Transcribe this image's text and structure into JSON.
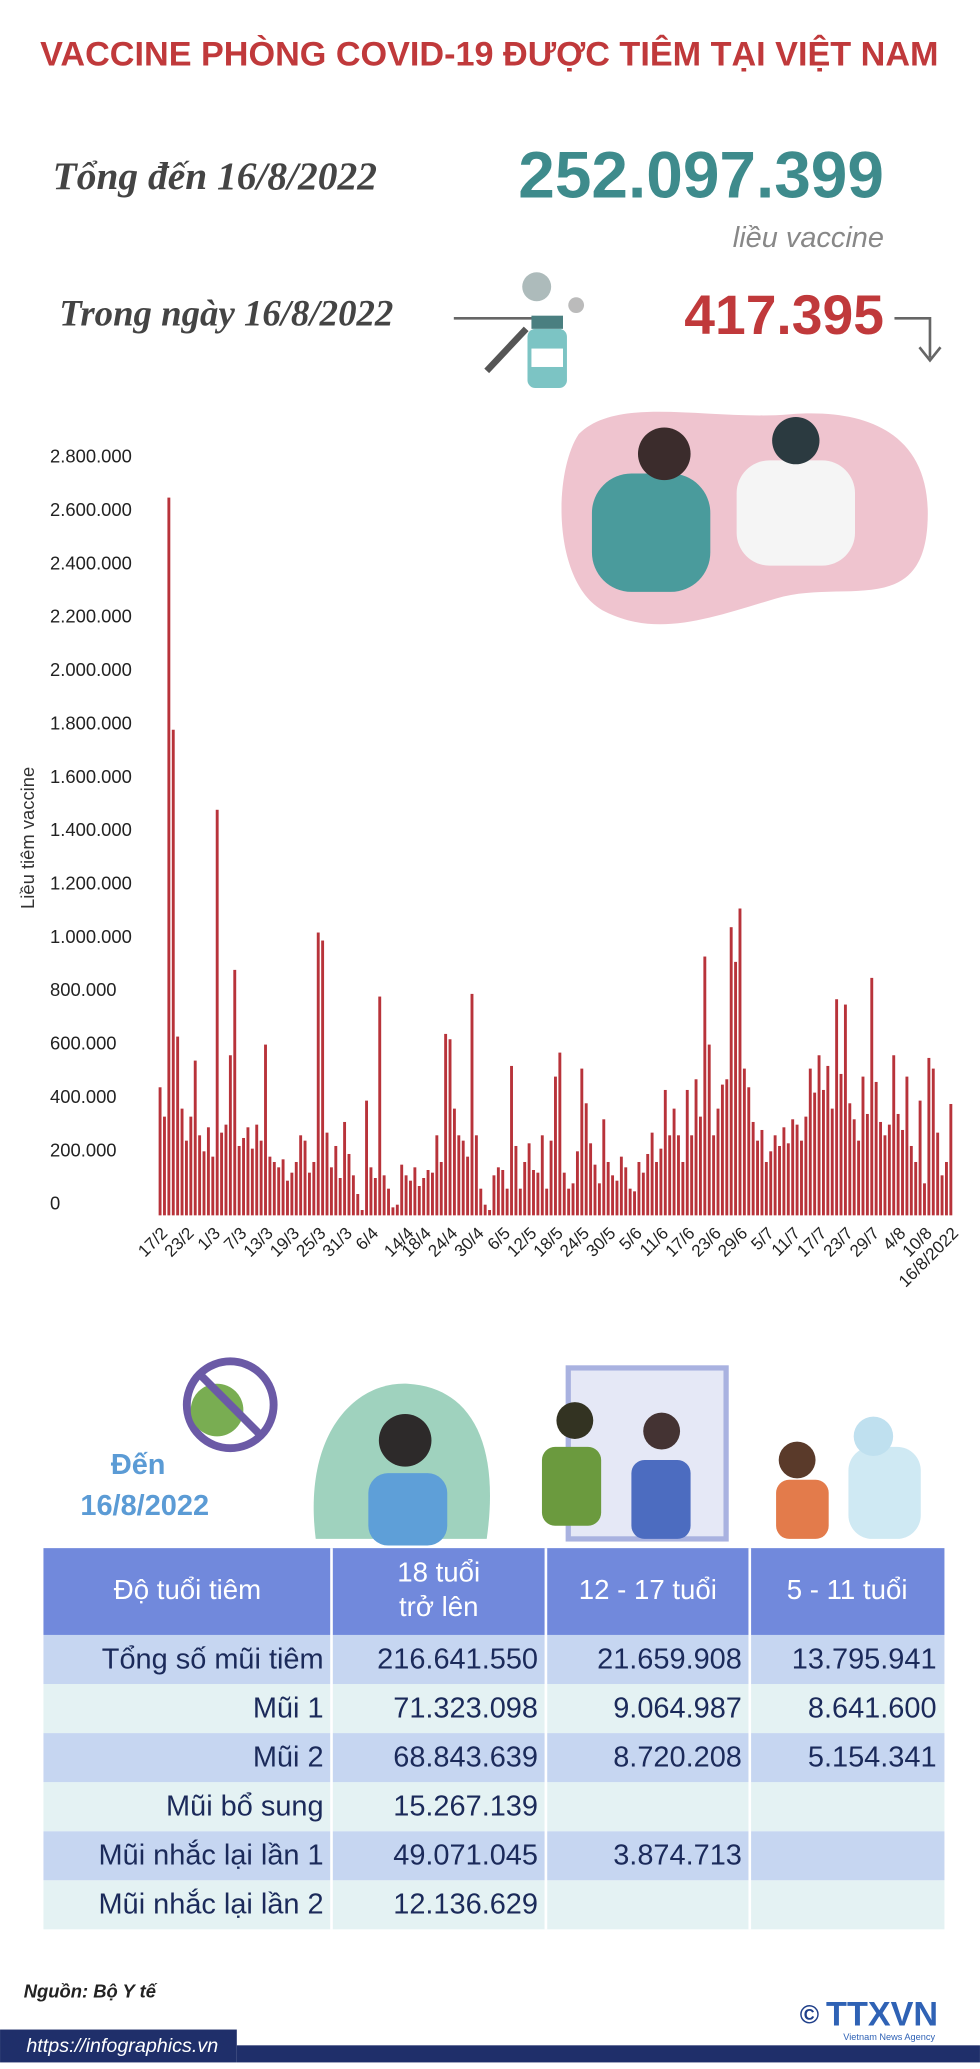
{
  "header": {
    "title": "VACCINE PHÒNG COVID-19 ĐƯỢC TIÊM TẠI VIỆT NAM",
    "total_label": "Tổng đến 16/8/2022",
    "total_value": "252.097.399",
    "total_unit": "liều vaccine",
    "daily_label": "Trong ngày 16/8/2022",
    "daily_value": "417.395"
  },
  "chart_data": {
    "type": "bar",
    "y_label": "Liều tiêm vaccine",
    "color": "#b8333a",
    "categories": [
      "17/2",
      null,
      null,
      null,
      null,
      null,
      "23/2",
      null,
      null,
      null,
      null,
      null,
      "1/3",
      null,
      null,
      null,
      null,
      null,
      "7/3",
      null,
      null,
      null,
      null,
      null,
      "13/3",
      null,
      null,
      null,
      null,
      null,
      "19/3",
      null,
      null,
      null,
      null,
      null,
      "25/3",
      null,
      null,
      null,
      null,
      null,
      "31/3",
      null,
      null,
      null,
      null,
      null,
      "6/4",
      null,
      null,
      null,
      null,
      null,
      null,
      null,
      "14/4",
      null,
      null,
      null,
      "18/4",
      null,
      null,
      null,
      null,
      null,
      "24/4",
      null,
      null,
      null,
      null,
      null,
      "30/4",
      null,
      null,
      null,
      null,
      null,
      "6/5",
      null,
      null,
      null,
      null,
      null,
      "12/5",
      null,
      null,
      null,
      null,
      null,
      "18/5",
      null,
      null,
      null,
      null,
      null,
      "24/5",
      null,
      null,
      null,
      null,
      null,
      "30/5",
      null,
      null,
      null,
      null,
      null,
      "5/6",
      null,
      null,
      null,
      null,
      null,
      "11/6",
      null,
      null,
      null,
      null,
      null,
      "17/6",
      null,
      null,
      null,
      null,
      null,
      "23/6",
      null,
      null,
      null,
      null,
      null,
      "29/6",
      null,
      null,
      null,
      null,
      null,
      "5/7",
      null,
      null,
      null,
      null,
      null,
      "11/7",
      null,
      null,
      null,
      null,
      null,
      "17/7",
      null,
      null,
      null,
      null,
      null,
      "23/7",
      null,
      null,
      null,
      null,
      null,
      "29/7",
      null,
      null,
      null,
      null,
      null,
      "4/8",
      null,
      null,
      null,
      null,
      null,
      "10/8",
      null,
      null,
      null,
      null,
      null,
      "16/8/2022"
    ],
    "values": [
      480000,
      370000,
      2690000,
      1820000,
      670000,
      400000,
      280000,
      370000,
      580000,
      300000,
      240000,
      330000,
      220000,
      1520000,
      310000,
      340000,
      600000,
      920000,
      260000,
      290000,
      330000,
      250000,
      340000,
      280000,
      640000,
      220000,
      200000,
      180000,
      210000,
      130000,
      160000,
      200000,
      300000,
      280000,
      160000,
      200000,
      1060000,
      1030000,
      310000,
      180000,
      260000,
      140000,
      350000,
      230000,
      150000,
      80000,
      20000,
      430000,
      180000,
      140000,
      820000,
      150000,
      100000,
      30000,
      40000,
      190000,
      150000,
      130000,
      180000,
      110000,
      140000,
      170000,
      160000,
      300000,
      200000,
      680000,
      660000,
      400000,
      300000,
      280000,
      220000,
      830000,
      300000,
      100000,
      40000,
      20000,
      150000,
      180000,
      170000,
      100000,
      560000,
      260000,
      100000,
      200000,
      270000,
      170000,
      160000,
      300000,
      100000,
      280000,
      520000,
      610000,
      160000,
      100000,
      120000,
      240000,
      550000,
      420000,
      270000,
      190000,
      120000,
      360000,
      200000,
      150000,
      130000,
      220000,
      180000,
      100000,
      90000,
      200000,
      160000,
      230000,
      310000,
      200000,
      250000,
      470000,
      300000,
      400000,
      300000,
      200000,
      470000,
      300000,
      510000,
      370000,
      970000,
      640000,
      300000,
      400000,
      490000,
      510000,
      1080000,
      950000,
      1150000,
      550000,
      480000,
      350000,
      280000,
      320000,
      200000,
      240000,
      300000,
      260000,
      330000,
      270000,
      360000,
      340000,
      280000,
      370000,
      550000,
      460000,
      600000,
      470000,
      560000,
      400000,
      810000,
      530000,
      790000,
      420000,
      360000,
      280000,
      520000,
      380000,
      890000,
      500000,
      350000,
      300000,
      340000,
      600000,
      380000,
      320000,
      520000,
      260000,
      200000,
      430000,
      120000,
      590000,
      550000,
      310000,
      150000,
      200000,
      417395
    ],
    "ylim": [
      0,
      2800000
    ],
    "yticks": [
      0,
      {
        "value": 200000,
        "label": "200.000"
      },
      {
        "value": 400000,
        "label": "400.000"
      },
      {
        "value": 600000,
        "label": "600.000"
      },
      {
        "value": 800000,
        "label": "800.000"
      },
      {
        "value": 1000000,
        "label": "1.000.000"
      },
      {
        "value": 1200000,
        "label": "1.200.000"
      },
      {
        "value": 1400000,
        "label": "1.400.000"
      },
      {
        "value": 1600000,
        "label": "1.600.000"
      },
      {
        "value": 1800000,
        "label": "1.800.000"
      },
      {
        "value": 2000000,
        "label": "2.000.000"
      },
      {
        "value": 2200000,
        "label": "2.200.000"
      },
      {
        "value": 2400000,
        "label": "2.400.000"
      },
      {
        "value": 2600000,
        "label": "2.600.000"
      },
      {
        "value": 2800000,
        "label": "2.800.000"
      }
    ]
  },
  "as_of": [
    "Đến",
    "16/8/2022"
  ],
  "table": {
    "header": [
      [
        "Độ tuổi tiêm"
      ],
      [
        "18 tuổi",
        "trở lên"
      ],
      [
        "12 - 17 tuổi"
      ],
      [
        "5 - 11 tuổi"
      ]
    ],
    "rows": [
      [
        "Tổng số mũi tiêm",
        "216.641.550",
        "21.659.908",
        "13.795.941"
      ],
      [
        "Mũi 1",
        "71.323.098",
        "9.064.987",
        "8.641.600"
      ],
      [
        "Mũi 2",
        "68.843.639",
        "8.720.208",
        "5.154.341"
      ],
      [
        "Mũi bổ sung",
        "15.267.139",
        null,
        null
      ],
      [
        "Mũi nhắc lại lần 1",
        "49.071.045",
        "3.874.713",
        null
      ],
      [
        "Mũi nhắc lại lần 2",
        "12.136.629",
        null,
        null
      ]
    ]
  },
  "footer": {
    "source": "Nguồn: Bộ Y tế",
    "url": "https://infographics.vn",
    "copyright": "©",
    "logo": "TTXVN",
    "agency": "Vietnam News Agency"
  }
}
